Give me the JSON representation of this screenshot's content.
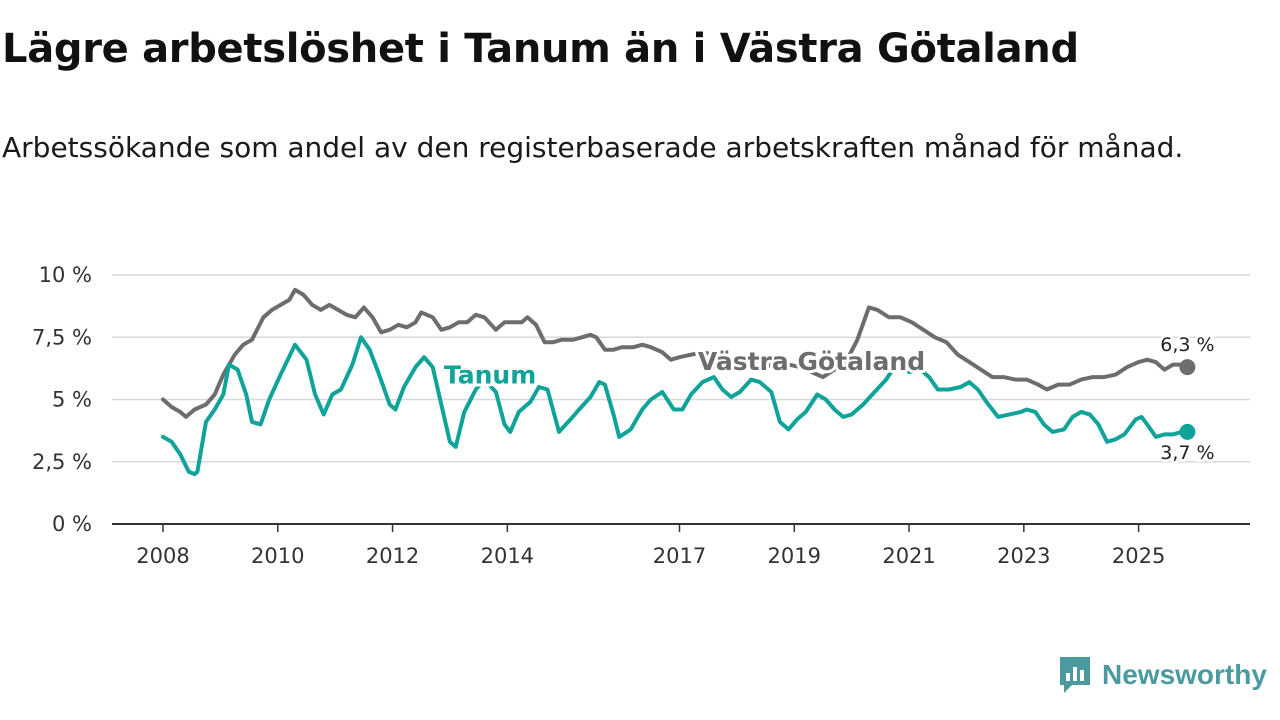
{
  "title": "Lägre arbetslöshet i Tanum än i Västra Götaland",
  "subtitle": "Arbetssökande som andel av den registerbaserade arbetskraften månad för månad.",
  "brand": "Newsworthy",
  "colors": {
    "tanum": "#0fa39a",
    "vg": "#6d6d6f",
    "grid": "#d9d9d9",
    "axis": "#333333"
  },
  "chart_data": {
    "type": "line",
    "title": "Lägre arbetslöshet i Tanum än i Västra Götaland",
    "xlabel": "",
    "ylabel": "",
    "grid": true,
    "ylim": [
      0,
      10
    ],
    "xlim": [
      2008,
      2026
    ],
    "y_ticks": [
      {
        "value": 0,
        "label": "0 %"
      },
      {
        "value": 2.5,
        "label": "2,5 %"
      },
      {
        "value": 5,
        "label": "5 %"
      },
      {
        "value": 7.5,
        "label": "7,5 %"
      },
      {
        "value": 10,
        "label": "10 %"
      }
    ],
    "x_ticks": [
      {
        "value": 2008,
        "label": "2008"
      },
      {
        "value": 2010,
        "label": "2010"
      },
      {
        "value": 2012,
        "label": "2012"
      },
      {
        "value": 2014,
        "label": "2014"
      },
      {
        "value": 2017,
        "label": "2017"
      },
      {
        "value": 2019,
        "label": "2019"
      },
      {
        "value": 2021,
        "label": "2021"
      },
      {
        "value": 2023,
        "label": "2023"
      },
      {
        "value": 2025,
        "label": "2025"
      }
    ],
    "series": [
      {
        "name": "Västra Götaland",
        "key": "vg",
        "end_label": "6,3 %",
        "points": [
          [
            2008.0,
            5.0
          ],
          [
            2008.15,
            4.7
          ],
          [
            2008.3,
            4.5
          ],
          [
            2008.4,
            4.3
          ],
          [
            2008.55,
            4.6
          ],
          [
            2008.75,
            4.8
          ],
          [
            2008.9,
            5.2
          ],
          [
            2009.05,
            6.0
          ],
          [
            2009.25,
            6.8
          ],
          [
            2009.4,
            7.2
          ],
          [
            2009.55,
            7.4
          ],
          [
            2009.75,
            8.3
          ],
          [
            2009.9,
            8.6
          ],
          [
            2010.05,
            8.8
          ],
          [
            2010.2,
            9.0
          ],
          [
            2010.3,
            9.4
          ],
          [
            2010.45,
            9.2
          ],
          [
            2010.6,
            8.8
          ],
          [
            2010.75,
            8.6
          ],
          [
            2010.9,
            8.8
          ],
          [
            2011.05,
            8.6
          ],
          [
            2011.2,
            8.4
          ],
          [
            2011.35,
            8.3
          ],
          [
            2011.5,
            8.7
          ],
          [
            2011.65,
            8.3
          ],
          [
            2011.8,
            7.7
          ],
          [
            2011.95,
            7.8
          ],
          [
            2012.1,
            8.0
          ],
          [
            2012.25,
            7.9
          ],
          [
            2012.4,
            8.1
          ],
          [
            2012.5,
            8.5
          ],
          [
            2012.7,
            8.3
          ],
          [
            2012.85,
            7.8
          ],
          [
            2013.0,
            7.9
          ],
          [
            2013.15,
            8.1
          ],
          [
            2013.3,
            8.1
          ],
          [
            2013.45,
            8.4
          ],
          [
            2013.6,
            8.3
          ],
          [
            2013.8,
            7.8
          ],
          [
            2013.95,
            8.1
          ],
          [
            2014.1,
            8.1
          ],
          [
            2014.25,
            8.1
          ],
          [
            2014.35,
            8.3
          ],
          [
            2014.5,
            8.0
          ],
          [
            2014.65,
            7.3
          ],
          [
            2014.8,
            7.3
          ],
          [
            2014.95,
            7.4
          ],
          [
            2015.15,
            7.4
          ],
          [
            2015.3,
            7.5
          ],
          [
            2015.45,
            7.6
          ],
          [
            2015.55,
            7.5
          ],
          [
            2015.7,
            7.0
          ],
          [
            2015.85,
            7.0
          ],
          [
            2016.0,
            7.1
          ],
          [
            2016.2,
            7.1
          ],
          [
            2016.35,
            7.2
          ],
          [
            2016.5,
            7.1
          ],
          [
            2016.7,
            6.9
          ],
          [
            2016.85,
            6.6
          ],
          [
            2017.0,
            6.7
          ],
          [
            2017.2,
            6.8
          ],
          [
            2017.4,
            6.9
          ],
          [
            2017.6,
            6.8
          ],
          [
            2017.75,
            6.5
          ],
          [
            2017.9,
            6.4
          ],
          [
            2018.05,
            6.5
          ],
          [
            2018.25,
            6.4
          ],
          [
            2018.5,
            6.3
          ],
          [
            2018.7,
            6.5
          ],
          [
            2018.9,
            6.4
          ],
          [
            2019.1,
            6.3
          ],
          [
            2019.3,
            6.1
          ],
          [
            2019.5,
            5.9
          ],
          [
            2019.7,
            6.2
          ],
          [
            2019.9,
            6.5
          ],
          [
            2020.1,
            7.4
          ],
          [
            2020.3,
            8.7
          ],
          [
            2020.45,
            8.6
          ],
          [
            2020.65,
            8.3
          ],
          [
            2020.85,
            8.3
          ],
          [
            2021.05,
            8.1
          ],
          [
            2021.25,
            7.8
          ],
          [
            2021.45,
            7.5
          ],
          [
            2021.65,
            7.3
          ],
          [
            2021.85,
            6.8
          ],
          [
            2022.05,
            6.5
          ],
          [
            2022.25,
            6.2
          ],
          [
            2022.45,
            5.9
          ],
          [
            2022.65,
            5.9
          ],
          [
            2022.85,
            5.8
          ],
          [
            2023.05,
            5.8
          ],
          [
            2023.25,
            5.6
          ],
          [
            2023.4,
            5.4
          ],
          [
            2023.6,
            5.6
          ],
          [
            2023.8,
            5.6
          ],
          [
            2024.0,
            5.8
          ],
          [
            2024.2,
            5.9
          ],
          [
            2024.4,
            5.9
          ],
          [
            2024.6,
            6.0
          ],
          [
            2024.8,
            6.3
          ],
          [
            2025.0,
            6.5
          ],
          [
            2025.15,
            6.6
          ],
          [
            2025.3,
            6.5
          ],
          [
            2025.45,
            6.2
          ],
          [
            2025.6,
            6.4
          ],
          [
            2025.75,
            6.4
          ],
          [
            2025.85,
            6.3
          ]
        ]
      },
      {
        "name": "Tanum",
        "key": "tanum",
        "end_label": "3,7 %",
        "points": [
          [
            2008.0,
            3.5
          ],
          [
            2008.15,
            3.3
          ],
          [
            2008.3,
            2.8
          ],
          [
            2008.45,
            2.1
          ],
          [
            2008.55,
            2.0
          ],
          [
            2008.6,
            2.1
          ],
          [
            2008.75,
            4.1
          ],
          [
            2008.9,
            4.6
          ],
          [
            2009.05,
            5.2
          ],
          [
            2009.15,
            6.4
          ],
          [
            2009.3,
            6.2
          ],
          [
            2009.45,
            5.2
          ],
          [
            2009.55,
            4.1
          ],
          [
            2009.7,
            4.0
          ],
          [
            2009.85,
            5.0
          ],
          [
            2010.05,
            6.0
          ],
          [
            2010.3,
            7.2
          ],
          [
            2010.5,
            6.6
          ],
          [
            2010.65,
            5.2
          ],
          [
            2010.8,
            4.4
          ],
          [
            2010.95,
            5.2
          ],
          [
            2011.1,
            5.4
          ],
          [
            2011.3,
            6.4
          ],
          [
            2011.45,
            7.5
          ],
          [
            2011.6,
            7.0
          ],
          [
            2011.75,
            6.1
          ],
          [
            2011.95,
            4.8
          ],
          [
            2012.05,
            4.6
          ],
          [
            2012.2,
            5.5
          ],
          [
            2012.4,
            6.3
          ],
          [
            2012.55,
            6.7
          ],
          [
            2012.7,
            6.3
          ],
          [
            2012.85,
            4.8
          ],
          [
            2013.0,
            3.3
          ],
          [
            2013.1,
            3.1
          ],
          [
            2013.25,
            4.5
          ],
          [
            2013.45,
            5.4
          ],
          [
            2013.6,
            5.8
          ],
          [
            2013.8,
            5.3
          ],
          [
            2013.95,
            4.0
          ],
          [
            2014.05,
            3.7
          ],
          [
            2014.2,
            4.5
          ],
          [
            2014.4,
            4.9
          ],
          [
            2014.55,
            5.5
          ],
          [
            2014.7,
            5.4
          ],
          [
            2014.9,
            3.7
          ],
          [
            2015.1,
            4.2
          ],
          [
            2015.25,
            4.6
          ],
          [
            2015.45,
            5.1
          ],
          [
            2015.6,
            5.7
          ],
          [
            2015.7,
            5.6
          ],
          [
            2015.85,
            4.4
          ],
          [
            2015.95,
            3.5
          ],
          [
            2016.15,
            3.8
          ],
          [
            2016.35,
            4.6
          ],
          [
            2016.5,
            5.0
          ],
          [
            2016.7,
            5.3
          ],
          [
            2016.9,
            4.6
          ],
          [
            2017.05,
            4.6
          ],
          [
            2017.2,
            5.2
          ],
          [
            2017.4,
            5.7
          ],
          [
            2017.6,
            5.9
          ],
          [
            2017.75,
            5.4
          ],
          [
            2017.9,
            5.1
          ],
          [
            2018.05,
            5.3
          ],
          [
            2018.25,
            5.8
          ],
          [
            2018.4,
            5.7
          ],
          [
            2018.6,
            5.3
          ],
          [
            2018.75,
            4.1
          ],
          [
            2018.9,
            3.8
          ],
          [
            2019.05,
            4.2
          ],
          [
            2019.2,
            4.5
          ],
          [
            2019.4,
            5.2
          ],
          [
            2019.55,
            5.0
          ],
          [
            2019.7,
            4.6
          ],
          [
            2019.85,
            4.3
          ],
          [
            2020.0,
            4.4
          ],
          [
            2020.2,
            4.8
          ],
          [
            2020.4,
            5.3
          ],
          [
            2020.6,
            5.8
          ],
          [
            2020.8,
            6.5
          ],
          [
            2021.0,
            6.1
          ],
          [
            2021.2,
            6.2
          ],
          [
            2021.35,
            5.9
          ],
          [
            2021.5,
            5.4
          ],
          [
            2021.7,
            5.4
          ],
          [
            2021.9,
            5.5
          ],
          [
            2022.05,
            5.7
          ],
          [
            2022.2,
            5.4
          ],
          [
            2022.35,
            4.9
          ],
          [
            2022.55,
            4.3
          ],
          [
            2022.75,
            4.4
          ],
          [
            2022.95,
            4.5
          ],
          [
            2023.05,
            4.6
          ],
          [
            2023.2,
            4.5
          ],
          [
            2023.35,
            4.0
          ],
          [
            2023.5,
            3.7
          ],
          [
            2023.7,
            3.8
          ],
          [
            2023.85,
            4.3
          ],
          [
            2024.0,
            4.5
          ],
          [
            2024.15,
            4.4
          ],
          [
            2024.3,
            4.0
          ],
          [
            2024.45,
            3.3
          ],
          [
            2024.6,
            3.4
          ],
          [
            2024.75,
            3.6
          ],
          [
            2024.95,
            4.2
          ],
          [
            2025.05,
            4.3
          ],
          [
            2025.15,
            4.0
          ],
          [
            2025.3,
            3.5
          ],
          [
            2025.45,
            3.6
          ],
          [
            2025.6,
            3.6
          ],
          [
            2025.75,
            3.7
          ],
          [
            2025.85,
            3.7
          ]
        ]
      }
    ],
    "annotations": [
      {
        "text": "Tanum",
        "series": "tanum",
        "at": [
          2013.7,
          6.0
        ]
      },
      {
        "text": "Västra Götaland",
        "series": "vg",
        "at": [
          2019.3,
          6.55
        ]
      }
    ]
  }
}
